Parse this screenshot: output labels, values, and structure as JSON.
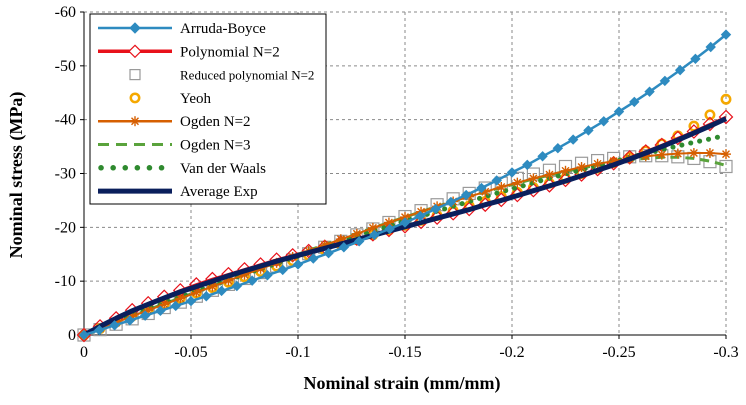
{
  "chart_data": {
    "type": "line",
    "xlabel": "Nominal strain (mm/mm)",
    "ylabel": "Nominal stress (MPa)",
    "xlim": [
      0,
      -0.3
    ],
    "ylim": [
      0,
      -60
    ],
    "x_ticks": [
      0,
      -0.05,
      -0.1,
      -0.15,
      -0.2,
      -0.25,
      -0.3
    ],
    "x_tick_labels": [
      "0",
      "-0.05",
      "-0.1",
      "-0.15",
      "-0.2",
      "-0.25",
      "-0.3"
    ],
    "y_ticks": [
      0,
      -10,
      -20,
      -30,
      -40,
      -50,
      -60
    ],
    "y_tick_labels": [
      "0",
      "-10",
      "-20",
      "-30",
      "-40",
      "-50",
      "-60"
    ],
    "grid": "dashed",
    "legend_position": "top-left",
    "x_step": -0.00714,
    "series": [
      {
        "name": "Arruda-Boyce",
        "color": "#2e8bc0",
        "style": "line-diamond-markers",
        "values": [
          0,
          -0.9,
          -1.8,
          -2.7,
          -3.6,
          -4.5,
          -5.4,
          -6.3,
          -7.2,
          -8.2,
          -9.1,
          -10.1,
          -11.1,
          -12.1,
          -13.1,
          -14.2,
          -15.2,
          -16.3,
          -17.4,
          -18.6,
          -19.7,
          -20.9,
          -22.1,
          -23.4,
          -24.7,
          -26.0,
          -27.3,
          -28.7,
          -30.2,
          -31.6,
          -33.2,
          -34.7,
          -36.3,
          -38.0,
          -39.7,
          -41.5,
          -43.3,
          -45.2,
          -47.2,
          -49.2,
          -51.3,
          -53.5,
          -55.8
        ]
      },
      {
        "name": "Polynomial N=2",
        "color": "#e8121b",
        "style": "line-open-diamond-markers",
        "values": [
          0,
          -1.6,
          -3.1,
          -4.6,
          -5.9,
          -7.1,
          -8.3,
          -9.4,
          -10.4,
          -11.3,
          -12.2,
          -13.1,
          -14.0,
          -14.8,
          -15.6,
          -16.4,
          -17.2,
          -17.9,
          -18.7,
          -19.5,
          -20.2,
          -21.0,
          -21.8,
          -22.6,
          -23.4,
          -24.2,
          -25.1,
          -26.0,
          -26.9,
          -27.8,
          -28.8,
          -29.8,
          -30.8,
          -31.9,
          -33.0,
          -34.1,
          -35.3,
          -36.6,
          -37.8,
          -39.2,
          -40.5
        ]
      },
      {
        "name": "Reduced polynomial N=2",
        "color": "#9a9a9a",
        "style": "open-square-markers",
        "values": [
          0,
          -1.0,
          -2.0,
          -3.0,
          -4.0,
          -5.1,
          -6.1,
          -7.2,
          -8.3,
          -9.4,
          -10.5,
          -11.6,
          -12.8,
          -13.9,
          -15.1,
          -16.3,
          -17.4,
          -18.6,
          -19.7,
          -20.9,
          -22.0,
          -23.1,
          -24.2,
          -25.3,
          -26.3,
          -27.3,
          -28.2,
          -29.1,
          -29.9,
          -30.6,
          -31.3,
          -31.9,
          -32.4,
          -32.8,
          -33.1,
          -33.3,
          -33.3,
          -33.1,
          -32.8,
          -32.2,
          -31.3
        ]
      },
      {
        "name": "Yeoh",
        "color": "#f5a800",
        "style": "open-circle-markers",
        "values": [
          0,
          -1.2,
          -2.4,
          -3.5,
          -4.6,
          -5.7,
          -6.8,
          -7.8,
          -8.8,
          -9.8,
          -10.8,
          -11.8,
          -12.8,
          -13.8,
          -14.8,
          -15.8,
          -16.8,
          -17.7,
          -18.6,
          -19.5,
          -20.4,
          -21.3,
          -22.2,
          -23.1,
          -24.0,
          -24.8,
          -25.7,
          -26.5,
          -27.4,
          -28.2,
          -29.1,
          -30.0,
          -31.0,
          -32.0,
          -33.0,
          -34.2,
          -35.5,
          -37.0,
          -38.8,
          -40.9,
          -43.8
        ]
      },
      {
        "name": "Ogden N=2",
        "color": "#d65f00",
        "style": "line-star-markers",
        "values": [
          0,
          -1.2,
          -2.3,
          -3.5,
          -4.6,
          -5.7,
          -6.8,
          -7.9,
          -9.0,
          -10.1,
          -11.2,
          -12.3,
          -13.4,
          -14.5,
          -15.6,
          -16.7,
          -17.8,
          -18.8,
          -19.9,
          -20.9,
          -21.9,
          -22.9,
          -23.9,
          -24.8,
          -25.7,
          -26.6,
          -27.5,
          -28.3,
          -29.1,
          -29.8,
          -30.5,
          -31.2,
          -31.8,
          -32.3,
          -32.8,
          -33.2,
          -33.5,
          -33.7,
          -33.8,
          -33.8,
          -33.6
        ]
      },
      {
        "name": "Ogden N=3",
        "color": "#5aa33c",
        "style": "dashed-line",
        "values": [
          0,
          -1.2,
          -2.4,
          -3.5,
          -4.7,
          -5.8,
          -6.9,
          -8.0,
          -9.1,
          -10.2,
          -11.3,
          -12.4,
          -13.5,
          -14.6,
          -15.7,
          -16.8,
          -17.8,
          -18.9,
          -19.9,
          -20.9,
          -21.9,
          -22.9,
          -23.9,
          -24.8,
          -25.7,
          -26.6,
          -27.4,
          -28.2,
          -29.0,
          -29.7,
          -30.4,
          -31.0,
          -31.6,
          -32.1,
          -32.5,
          -32.8,
          -33.0,
          -33.0,
          -32.8,
          -32.3,
          -31.5
        ]
      },
      {
        "name": "Van der Waals",
        "color": "#2f8a2f",
        "style": "dotted-line",
        "values": [
          0,
          -1.3,
          -2.5,
          -3.7,
          -4.8,
          -5.9,
          -7.0,
          -8.1,
          -9.2,
          -10.2,
          -11.3,
          -12.3,
          -13.3,
          -14.3,
          -15.3,
          -16.3,
          -17.3,
          -18.3,
          -19.3,
          -20.2,
          -21.2,
          -22.1,
          -23.0,
          -23.9,
          -24.8,
          -25.7,
          -26.6,
          -27.4,
          -28.3,
          -29.1,
          -29.9,
          -30.7,
          -31.5,
          -32.2,
          -33.0,
          -33.7,
          -34.4,
          -35.1,
          -35.8,
          -36.4,
          -37.1
        ]
      },
      {
        "name": "Average Exp",
        "color": "#0a1f5c",
        "style": "thick-line",
        "values": [
          0,
          -1.6,
          -3.1,
          -4.5,
          -5.7,
          -6.9,
          -8.0,
          -9.0,
          -10.0,
          -11.0,
          -11.9,
          -12.8,
          -13.7,
          -14.5,
          -15.3,
          -16.1,
          -16.9,
          -17.7,
          -18.5,
          -19.3,
          -20.1,
          -20.9,
          -21.7,
          -22.5,
          -23.3,
          -24.2,
          -25.0,
          -25.9,
          -26.8,
          -27.7,
          -28.6,
          -29.6,
          -30.6,
          -31.6,
          -32.7,
          -33.8,
          -35.0,
          -36.2,
          -37.5,
          -38.8,
          -40.2
        ]
      }
    ]
  }
}
